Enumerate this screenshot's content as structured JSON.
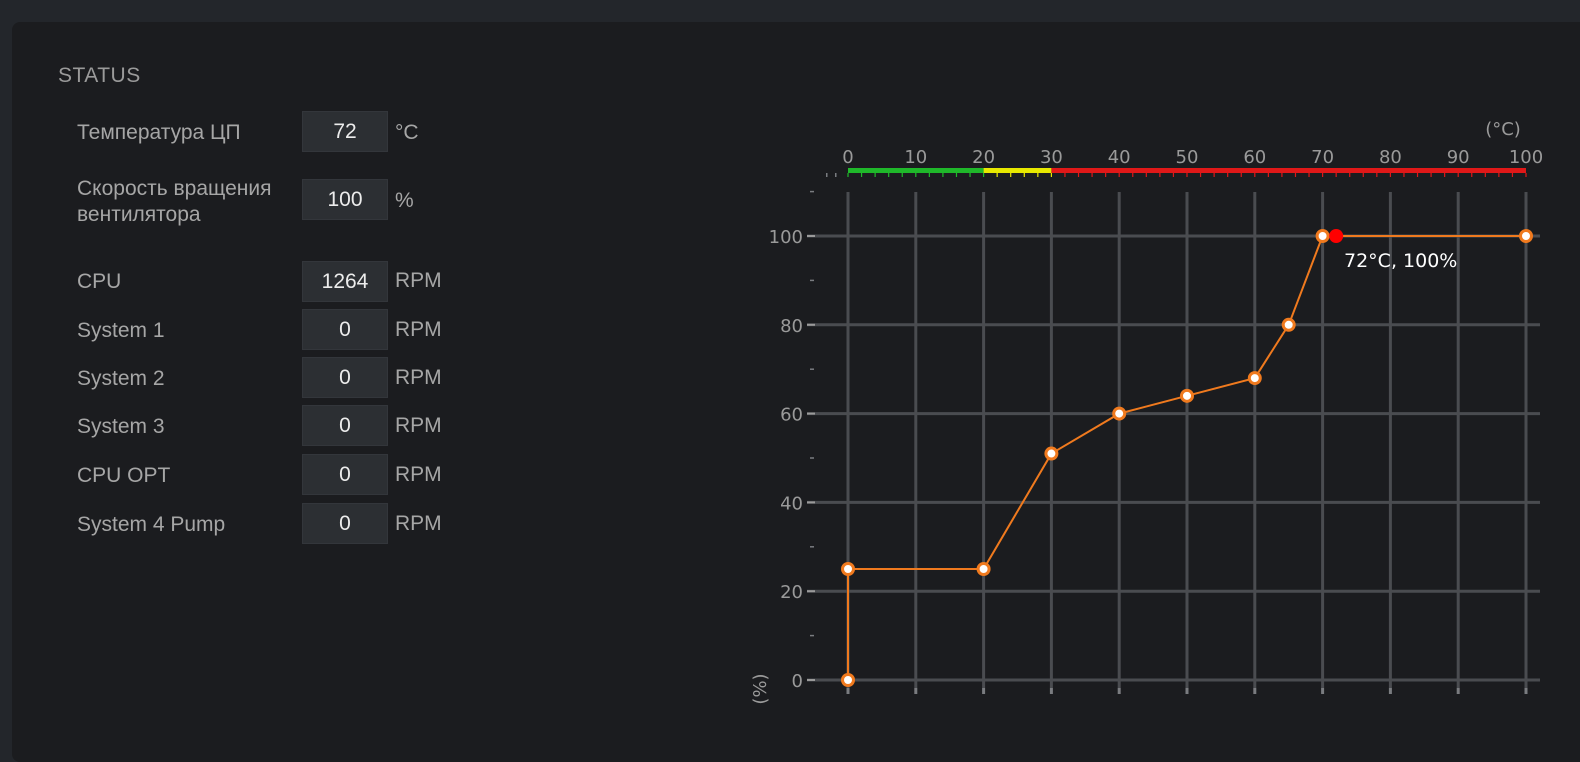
{
  "status": {
    "title": "STATUS",
    "cpu_temp": {
      "label": "Температура ЦП",
      "value": "72",
      "unit": "°C"
    },
    "fan_speed": {
      "label_line1": "Скорость вращения",
      "label_line2": "вентилятора",
      "value": "100",
      "unit": "%"
    },
    "fans": [
      {
        "label": "CPU",
        "value": "1264",
        "unit": "RPM"
      },
      {
        "label": "System 1",
        "value": "0",
        "unit": "RPM"
      },
      {
        "label": "System 2",
        "value": "0",
        "unit": "RPM"
      },
      {
        "label": "System 3",
        "value": "0",
        "unit": "RPM"
      },
      {
        "label": "CPU OPT",
        "value": "0",
        "unit": "RPM"
      },
      {
        "label": "System 4 Pump",
        "value": "0",
        "unit": "RPM"
      }
    ]
  },
  "chart_data": {
    "type": "line",
    "xlabel": "(°C)",
    "ylabel": "(%)",
    "xlim": [
      0,
      100
    ],
    "ylim": [
      0,
      100
    ],
    "x_ticks": [
      "0",
      "10",
      "20",
      "30",
      "40",
      "50",
      "60",
      "70",
      "80",
      "90",
      "100"
    ],
    "y_ticks": [
      "0",
      "20",
      "40",
      "60",
      "80",
      "100"
    ],
    "temperature_bands": [
      {
        "from": 0,
        "to": 20,
        "color": "#1fb82a"
      },
      {
        "from": 20,
        "to": 30,
        "color": "#e8e800"
      },
      {
        "from": 30,
        "to": 100,
        "color": "#e01818"
      }
    ],
    "series": [
      {
        "points": [
          [
            0,
            0
          ],
          [
            0,
            25
          ],
          [
            20,
            25
          ],
          [
            30,
            51
          ],
          [
            40,
            60
          ],
          [
            50,
            64
          ],
          [
            60,
            68
          ],
          [
            65,
            80
          ],
          [
            70,
            100
          ],
          [
            100,
            100
          ]
        ]
      }
    ],
    "current_point": {
      "x": 72,
      "y": 100,
      "label": "72°C, 100%"
    },
    "colors": {
      "curve": "#f07a1e",
      "current": "#ff0000",
      "grid": "#4a4c50"
    }
  }
}
